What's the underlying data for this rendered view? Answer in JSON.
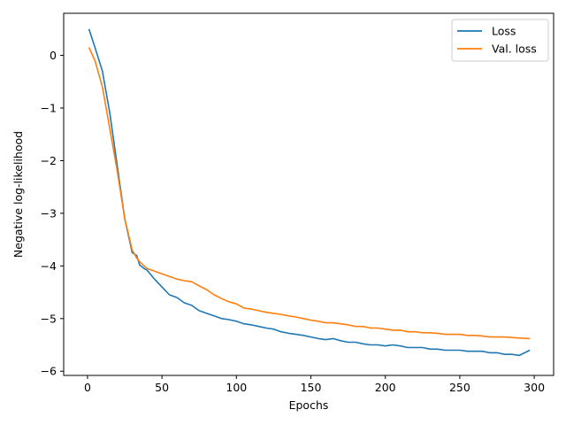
{
  "chart_data": {
    "type": "line",
    "title": "",
    "xlabel": "Epochs",
    "ylabel": "Negative log-likelihood",
    "xlim": [
      -16,
      313
    ],
    "ylim": [
      -6.08,
      0.8
    ],
    "xticks": [
      0,
      50,
      100,
      150,
      200,
      250,
      300
    ],
    "yticks": [
      0,
      -1,
      -2,
      -3,
      -4,
      -5,
      -6
    ],
    "grid": false,
    "legend_position": "top-right",
    "series": [
      {
        "name": "Loss",
        "color": "#1f77b4",
        "x": [
          1,
          5,
          10,
          15,
          20,
          25,
          30,
          33,
          35,
          38,
          40,
          45,
          50,
          55,
          60,
          65,
          70,
          75,
          80,
          85,
          90,
          95,
          100,
          105,
          110,
          115,
          120,
          125,
          130,
          135,
          140,
          145,
          150,
          155,
          160,
          165,
          170,
          175,
          180,
          185,
          190,
          195,
          200,
          205,
          210,
          215,
          220,
          225,
          230,
          235,
          240,
          245,
          250,
          255,
          260,
          265,
          270,
          275,
          280,
          285,
          290,
          297
        ],
        "values": [
          0.5,
          0.15,
          -0.3,
          -1.1,
          -2.1,
          -3.1,
          -3.75,
          -3.8,
          -3.98,
          -4.05,
          -4.08,
          -4.25,
          -4.4,
          -4.55,
          -4.6,
          -4.7,
          -4.75,
          -4.85,
          -4.9,
          -4.95,
          -5.0,
          -5.02,
          -5.05,
          -5.1,
          -5.12,
          -5.15,
          -5.18,
          -5.2,
          -5.25,
          -5.28,
          -5.3,
          -5.32,
          -5.35,
          -5.38,
          -5.4,
          -5.38,
          -5.42,
          -5.45,
          -5.45,
          -5.48,
          -5.5,
          -5.5,
          -5.52,
          -5.5,
          -5.52,
          -5.55,
          -5.55,
          -5.55,
          -5.58,
          -5.58,
          -5.6,
          -5.6,
          -5.6,
          -5.62,
          -5.62,
          -5.62,
          -5.65,
          -5.65,
          -5.68,
          -5.68,
          -5.7,
          -5.6
        ]
      },
      {
        "name": "Val. loss",
        "color": "#ff7f0e",
        "x": [
          1,
          5,
          10,
          15,
          20,
          25,
          30,
          33,
          35,
          38,
          40,
          45,
          50,
          55,
          60,
          65,
          70,
          75,
          80,
          85,
          90,
          95,
          100,
          105,
          110,
          115,
          120,
          125,
          130,
          135,
          140,
          145,
          150,
          155,
          160,
          165,
          170,
          175,
          180,
          185,
          190,
          195,
          200,
          205,
          210,
          215,
          220,
          225,
          230,
          235,
          240,
          245,
          250,
          255,
          260,
          265,
          270,
          275,
          280,
          285,
          290,
          297
        ],
        "values": [
          0.15,
          -0.1,
          -0.6,
          -1.4,
          -2.2,
          -3.1,
          -3.7,
          -3.85,
          -3.92,
          -4.0,
          -4.05,
          -4.1,
          -4.15,
          -4.2,
          -4.25,
          -4.28,
          -4.3,
          -4.38,
          -4.45,
          -4.55,
          -4.62,
          -4.68,
          -4.72,
          -4.8,
          -4.82,
          -4.85,
          -4.88,
          -4.9,
          -4.92,
          -4.95,
          -4.97,
          -5.0,
          -5.03,
          -5.05,
          -5.08,
          -5.08,
          -5.1,
          -5.12,
          -5.15,
          -5.15,
          -5.18,
          -5.18,
          -5.2,
          -5.22,
          -5.22,
          -5.25,
          -5.25,
          -5.27,
          -5.27,
          -5.28,
          -5.3,
          -5.3,
          -5.3,
          -5.32,
          -5.32,
          -5.33,
          -5.35,
          -5.35,
          -5.35,
          -5.36,
          -5.37,
          -5.38
        ]
      }
    ]
  }
}
